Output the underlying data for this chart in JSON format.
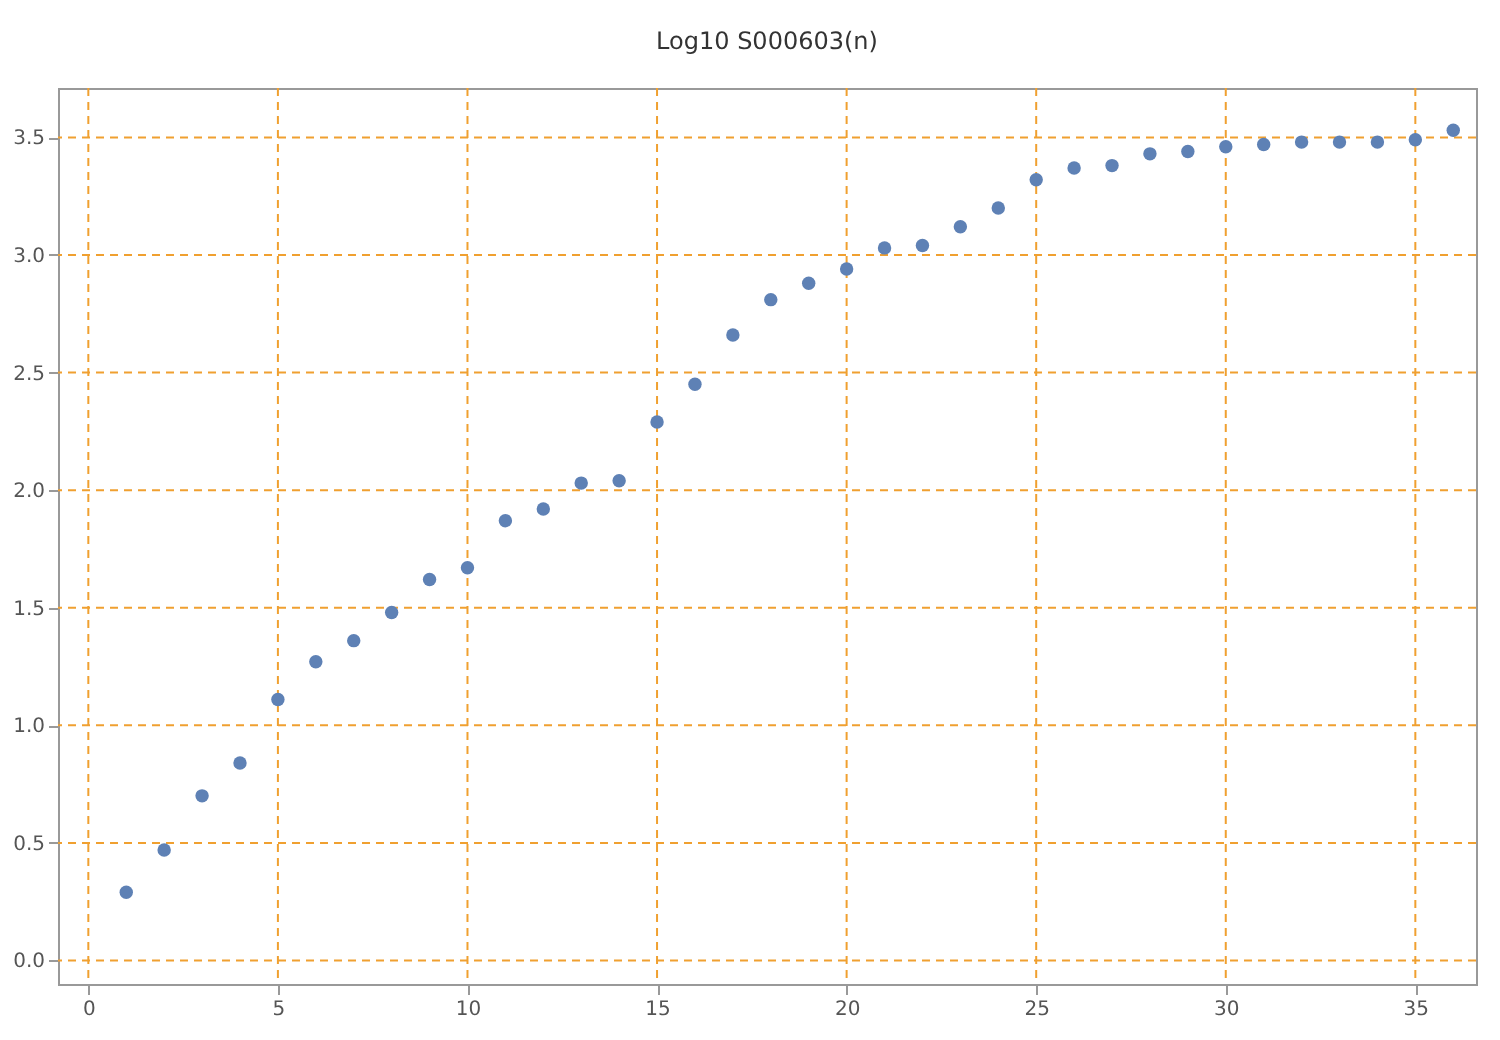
{
  "chart_data": {
    "type": "scatter",
    "title": "Log10 S000603(n)",
    "x": [
      1,
      2,
      3,
      4,
      5,
      6,
      7,
      8,
      9,
      10,
      11,
      12,
      13,
      14,
      15,
      16,
      17,
      18,
      19,
      20,
      21,
      22,
      23,
      24,
      25,
      26,
      27,
      28,
      29,
      30,
      31,
      32,
      33,
      34,
      35,
      36
    ],
    "series": [
      {
        "color": "#5e81b5",
        "values": [
          0.29,
          0.47,
          0.7,
          0.84,
          1.11,
          1.27,
          1.36,
          1.48,
          1.62,
          1.67,
          1.87,
          1.92,
          2.03,
          2.04,
          2.29,
          2.45,
          2.66,
          2.81,
          2.88,
          2.94,
          3.03,
          3.04,
          3.12,
          3.2,
          3.32,
          3.37,
          3.38,
          3.43,
          3.44,
          3.46,
          3.47,
          3.48,
          3.48,
          3.48,
          3.49,
          3.53
        ]
      }
    ],
    "xlim": [
      -0.8,
      36.6
    ],
    "ylim": [
      -0.1,
      3.71
    ],
    "xticks": [
      0,
      5,
      10,
      15,
      20,
      25,
      30,
      35
    ],
    "yticks": [
      {
        "value": 0,
        "label": "0.0"
      },
      {
        "value": 0.5,
        "label": "0.5"
      },
      {
        "value": 1,
        "label": "1.0"
      },
      {
        "value": 1.5,
        "label": "1.5"
      },
      {
        "value": 2,
        "label": "2.0"
      },
      {
        "value": 2.5,
        "label": "2.5"
      },
      {
        "value": 3,
        "label": "3.0"
      },
      {
        "value": 3.5,
        "label": "3.5"
      }
    ],
    "grid": true,
    "marker": "circle",
    "legend": false
  }
}
